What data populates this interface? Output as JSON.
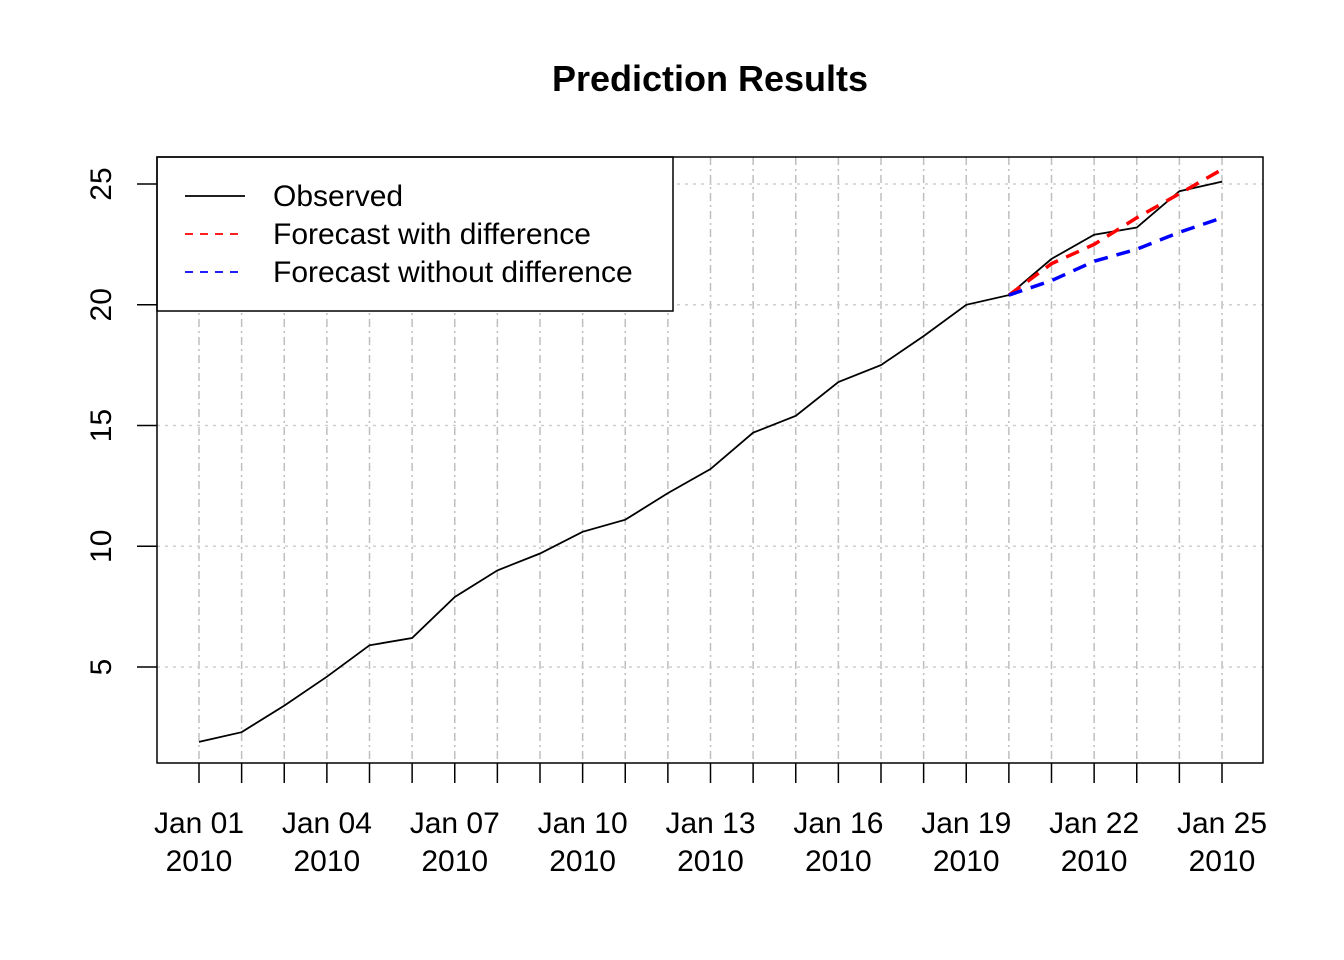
{
  "chart_data": {
    "type": "line",
    "title": "Prediction Results",
    "xlabel": "",
    "ylabel": "",
    "x": [
      "2010-01-01",
      "2010-01-02",
      "2010-01-03",
      "2010-01-04",
      "2010-01-05",
      "2010-01-06",
      "2010-01-07",
      "2010-01-08",
      "2010-01-09",
      "2010-01-10",
      "2010-01-11",
      "2010-01-12",
      "2010-01-13",
      "2010-01-14",
      "2010-01-15",
      "2010-01-16",
      "2010-01-17",
      "2010-01-18",
      "2010-01-19",
      "2010-01-20",
      "2010-01-21",
      "2010-01-22",
      "2010-01-23",
      "2010-01-24",
      "2010-01-25"
    ],
    "xlim": [
      "2010-01-01",
      "2010-01-25"
    ],
    "ylim": [
      2,
      26
    ],
    "x_ticks": [
      {
        "date": "2010-01-01",
        "label1": "Jan 01",
        "label2": "2010"
      },
      {
        "date": "2010-01-04",
        "label1": "Jan 04",
        "label2": "2010"
      },
      {
        "date": "2010-01-07",
        "label1": "Jan 07",
        "label2": "2010"
      },
      {
        "date": "2010-01-10",
        "label1": "Jan 10",
        "label2": "2010"
      },
      {
        "date": "2010-01-13",
        "label1": "Jan 13",
        "label2": "2010"
      },
      {
        "date": "2010-01-16",
        "label1": "Jan 16",
        "label2": "2010"
      },
      {
        "date": "2010-01-19",
        "label1": "Jan 19",
        "label2": "2010"
      },
      {
        "date": "2010-01-22",
        "label1": "Jan 22",
        "label2": "2010"
      },
      {
        "date": "2010-01-25",
        "label1": "Jan 25",
        "label2": "2010"
      }
    ],
    "y_ticks": [
      5,
      10,
      15,
      20,
      25
    ],
    "grid": true,
    "legend_position": "top-left",
    "series": [
      {
        "name": "Observed",
        "color": "#000000",
        "style": "solid",
        "x": [
          "2010-01-01",
          "2010-01-02",
          "2010-01-03",
          "2010-01-04",
          "2010-01-05",
          "2010-01-06",
          "2010-01-07",
          "2010-01-08",
          "2010-01-09",
          "2010-01-10",
          "2010-01-11",
          "2010-01-12",
          "2010-01-13",
          "2010-01-14",
          "2010-01-15",
          "2010-01-16",
          "2010-01-17",
          "2010-01-18",
          "2010-01-19",
          "2010-01-20",
          "2010-01-21",
          "2010-01-22",
          "2010-01-23",
          "2010-01-24",
          "2010-01-25"
        ],
        "values": [
          1.9,
          2.3,
          3.4,
          4.6,
          5.9,
          6.2,
          7.9,
          9.0,
          9.7,
          10.6,
          11.1,
          12.2,
          13.2,
          14.7,
          15.4,
          16.8,
          17.5,
          18.7,
          20.0,
          20.4,
          21.9,
          22.9,
          23.2,
          24.7,
          25.1
        ]
      },
      {
        "name": "Forecast with difference",
        "color": "#ff0000",
        "style": "dashed",
        "x": [
          "2010-01-20",
          "2010-01-21",
          "2010-01-22",
          "2010-01-23",
          "2010-01-24",
          "2010-01-25"
        ],
        "values": [
          20.4,
          21.7,
          22.5,
          23.6,
          24.6,
          25.6
        ]
      },
      {
        "name": "Forecast without difference",
        "color": "#0000ff",
        "style": "dashed",
        "x": [
          "2010-01-20",
          "2010-01-21",
          "2010-01-22",
          "2010-01-23",
          "2010-01-24",
          "2010-01-25"
        ],
        "values": [
          20.4,
          21.0,
          21.8,
          22.3,
          23.0,
          23.6
        ]
      }
    ]
  }
}
